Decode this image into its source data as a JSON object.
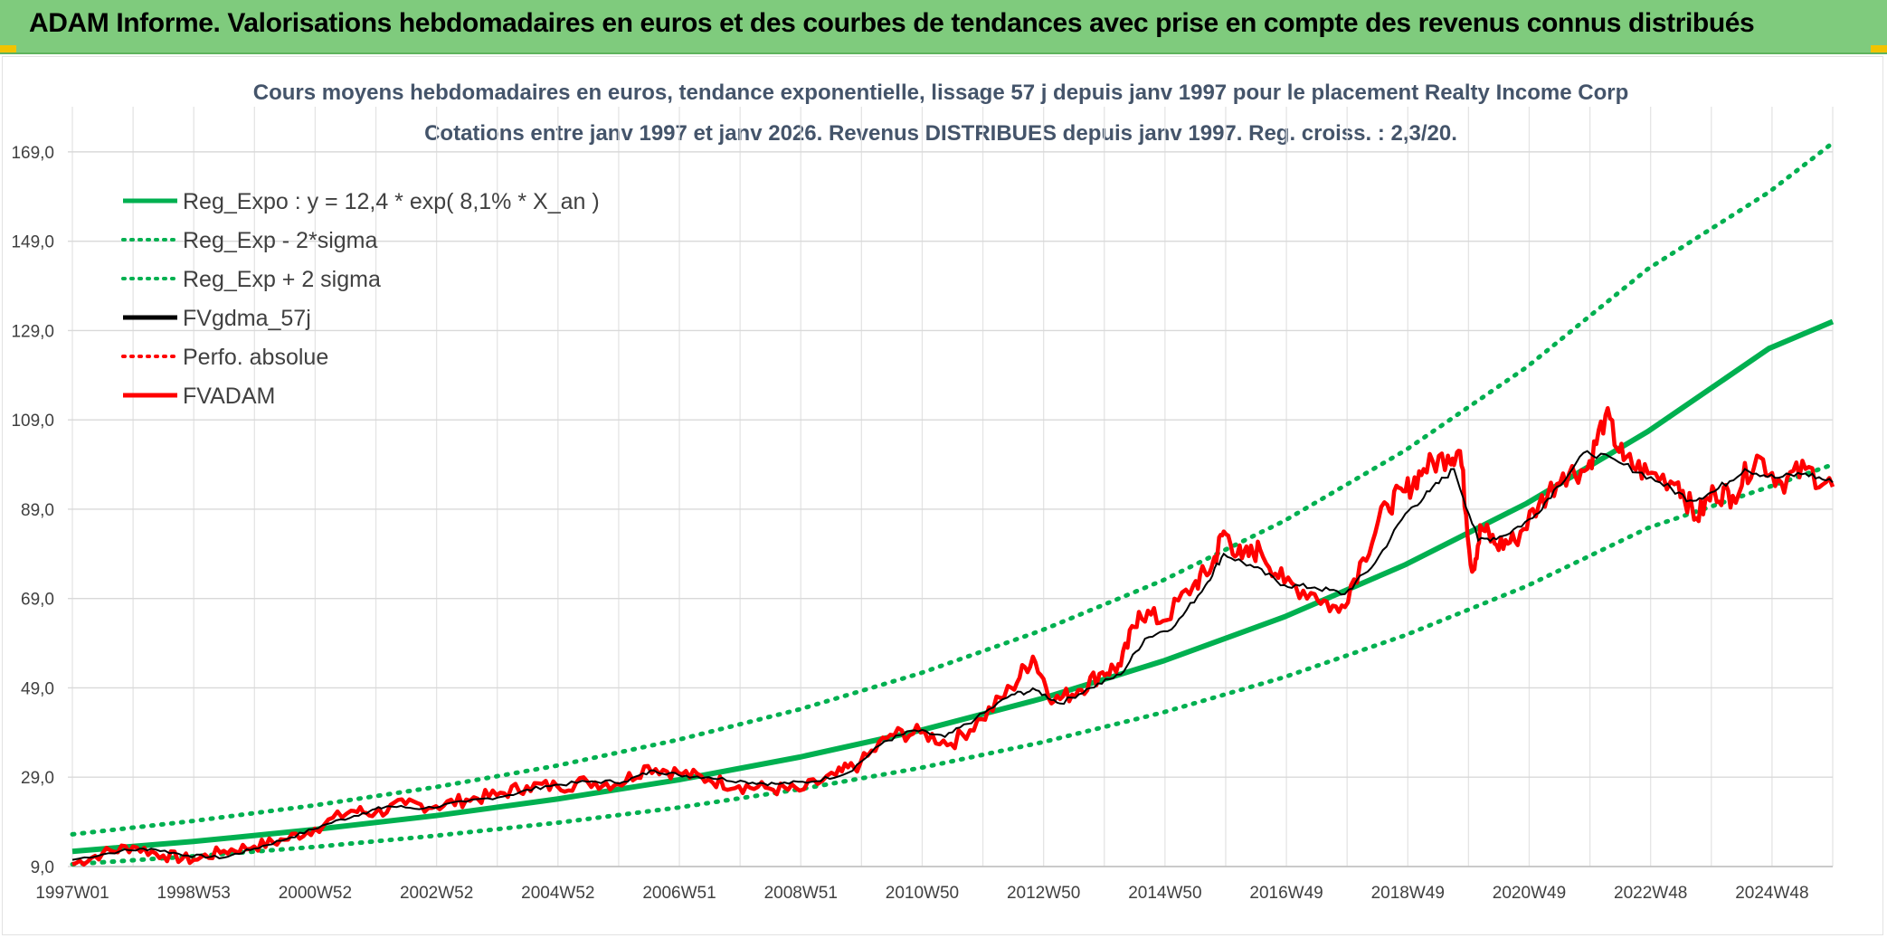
{
  "header": {
    "title": "ADAM Informe. Valorisations hebdomadaires en euros et des courbes de tendances avec prise en compte des revenus connus distribués"
  },
  "colors": {
    "header_bg": "#7fcb7d",
    "trend": "#00b050",
    "ma": "#000000",
    "fvadam": "#ff0000",
    "grid": "#d9d9d9"
  },
  "chart_data": {
    "type": "line",
    "title_line1": "Cours moyens hebdomadaires en euros, tendance exponentielle, lissage 57 j depuis janv 1997 pour le placement Realty Income Corp",
    "title_line2": "Cotations entre janv 1997 et janv 2026. Revenus DISTRIBUES depuis janv 1997. Reg. croiss. : 2,3/20.",
    "y_ticks": [
      "9,0",
      "29,0",
      "49,0",
      "69,0",
      "89,0",
      "109,0",
      "129,0",
      "149,0",
      "169,0"
    ],
    "ylim": [
      9,
      171
    ],
    "x_ticks": [
      "1997W01",
      "1998W53",
      "2000W52",
      "2002W52",
      "2004W52",
      "2006W51",
      "2008W51",
      "2010W50",
      "2012W50",
      "2014W50",
      "2016W49",
      "2018W49",
      "2020W49",
      "2022W48",
      "2024W48"
    ],
    "xlim": [
      1997.0,
      2026.05
    ],
    "grid": true,
    "legend_position": "top-left",
    "legend": [
      {
        "label": "Reg_Expo : y = 12,4 * exp( 8,1% *  X_an )",
        "color": "#00b050",
        "style": "solid"
      },
      {
        "label": "Reg_Exp - 2*sigma",
        "color": "#00b050",
        "style": "dotted"
      },
      {
        "label": "Reg_Exp + 2 sigma",
        "color": "#00b050",
        "style": "dotted"
      },
      {
        "label": "FVgdma_57j",
        "color": "#000000",
        "style": "solid"
      },
      {
        "label": "Perfo. absolue",
        "color": "#ff0000",
        "style": "dotted"
      },
      {
        "label": "FVADAM",
        "color": "#ff0000",
        "style": "solid"
      }
    ],
    "series": [
      {
        "name": "Reg_Expo : y = 12,4 * exp( 8,1% *  X_an )",
        "x": [
          1997.0,
          1999.0,
          2001.0,
          2003.0,
          2005.0,
          2007.0,
          2009.0,
          2011.0,
          2013.0,
          2015.0,
          2017.0,
          2019.0,
          2021.0,
          2023.0,
          2025.0,
          2026.05
        ],
        "values": [
          12.4,
          14.6,
          17.3,
          20.4,
          24.1,
          28.4,
          33.5,
          39.5,
          46.6,
          55.0,
          64.9,
          76.6,
          90.3,
          106.4,
          125.0,
          131.0
        ]
      },
      {
        "name": "Reg_Exp - 2*sigma",
        "x": [
          1997.0,
          1999.0,
          2001.0,
          2003.0,
          2005.0,
          2007.0,
          2009.0,
          2011.0,
          2013.0,
          2015.0,
          2017.0,
          2019.0,
          2021.0,
          2023.0,
          2025.0,
          2026.05
        ],
        "values": [
          9.5,
          11.3,
          13.4,
          15.9,
          18.8,
          22.2,
          26.3,
          31.1,
          36.8,
          43.5,
          51.4,
          60.8,
          71.8,
          84.8,
          94.0,
          99.0
        ]
      },
      {
        "name": "Reg_Exp + 2 sigma",
        "x": [
          1997.0,
          1999.0,
          2001.0,
          2003.0,
          2005.0,
          2007.0,
          2009.0,
          2011.0,
          2013.0,
          2015.0,
          2017.0,
          2019.0,
          2021.0,
          2023.0,
          2025.0,
          2026.05
        ],
        "values": [
          16.2,
          19.2,
          22.7,
          26.8,
          31.6,
          37.4,
          44.2,
          52.3,
          61.9,
          73.1,
          86.4,
          102.2,
          120.8,
          142.8,
          160.0,
          171.0
        ]
      },
      {
        "name": "FVgdma_57j",
        "x": [
          1997.0,
          1997.8,
          1998.3,
          1998.9,
          1999.5,
          2000.0,
          2000.6,
          2001.2,
          2001.8,
          2002.2,
          2002.8,
          2003.5,
          2004.2,
          2004.8,
          2005.5,
          2006.1,
          2006.6,
          2007.0,
          2007.5,
          2008.1,
          2008.6,
          2009.2,
          2009.8,
          2010.4,
          2010.9,
          2011.4,
          2011.9,
          2012.5,
          2012.9,
          2013.3,
          2013.8,
          2014.3,
          2014.7,
          2015.2,
          2015.7,
          2016.0,
          2016.5,
          2017.0,
          2017.5,
          2018.0,
          2018.5,
          2019.0,
          2019.4,
          2019.8,
          2020.2,
          2020.6,
          2021.1,
          2021.5,
          2022.0,
          2022.6,
          2023.2,
          2023.7,
          2024.1,
          2024.6,
          2025.1,
          2025.6,
          2026.05
        ],
        "values": [
          10.5,
          12.5,
          13.0,
          11.5,
          11.0,
          13.0,
          15.5,
          18.5,
          21.0,
          22.5,
          22.0,
          23.5,
          25.0,
          27.0,
          28.0,
          28.0,
          30.5,
          29.5,
          29.0,
          28.0,
          27.5,
          28.0,
          30.0,
          37.0,
          39.5,
          38.0,
          42.0,
          47.5,
          48.5,
          45.5,
          49.0,
          52.0,
          60.0,
          63.0,
          72.0,
          79.0,
          76.0,
          72.0,
          71.5,
          70.0,
          77.0,
          88.0,
          93.0,
          98.0,
          82.0,
          83.0,
          87.0,
          94.0,
          102.0,
          99.0,
          95.0,
          91.0,
          93.0,
          98.0,
          96.0,
          97.0,
          95.0
        ]
      },
      {
        "name": "FVADAM",
        "x": [
          1997.0,
          1997.5,
          1998.0,
          1998.5,
          1999.0,
          1999.5,
          2000.0,
          2000.5,
          2001.0,
          2001.6,
          2002.0,
          2002.5,
          2003.0,
          2003.5,
          2004.0,
          2004.5,
          2005.0,
          2005.5,
          2006.0,
          2006.5,
          2007.0,
          2007.5,
          2008.0,
          2008.5,
          2009.0,
          2009.6,
          2010.0,
          2010.5,
          2011.0,
          2011.5,
          2012.0,
          2012.5,
          2012.85,
          2013.2,
          2013.6,
          2014.0,
          2014.3,
          2014.6,
          2015.0,
          2015.5,
          2015.8,
          2016.0,
          2016.3,
          2016.6,
          2017.0,
          2017.5,
          2017.9,
          2018.3,
          2018.7,
          2019.0,
          2019.3,
          2019.7,
          2019.9,
          2020.1,
          2020.25,
          2020.5,
          2020.8,
          2021.2,
          2021.6,
          2022.0,
          2022.3,
          2022.6,
          2023.0,
          2023.5,
          2023.8,
          2024.1,
          2024.4,
          2024.8,
          2025.2,
          2025.6,
          2026.05
        ],
        "values": [
          9.5,
          12.0,
          13.5,
          11.5,
          10.5,
          12.5,
          13.5,
          15.0,
          17.5,
          21.5,
          21.0,
          23.0,
          22.5,
          24.0,
          25.0,
          27.0,
          27.0,
          28.0,
          27.5,
          31.5,
          30.0,
          28.5,
          27.0,
          26.5,
          26.0,
          29.5,
          32.0,
          38.5,
          39.0,
          36.5,
          42.0,
          49.0,
          56.0,
          46.0,
          48.5,
          52.5,
          54.0,
          66.0,
          64.0,
          72.0,
          76.0,
          84.0,
          78.0,
          80.0,
          72.5,
          70.0,
          66.0,
          78.0,
          90.0,
          93.0,
          98.0,
          101.0,
          102.0,
          75.0,
          85.0,
          81.0,
          82.0,
          90.0,
          97.0,
          98.0,
          110.0,
          100.0,
          97.0,
          95.0,
          87.0,
          93.0,
          92.0,
          101.0,
          95.0,
          98.0,
          94.0
        ]
      }
    ]
  }
}
